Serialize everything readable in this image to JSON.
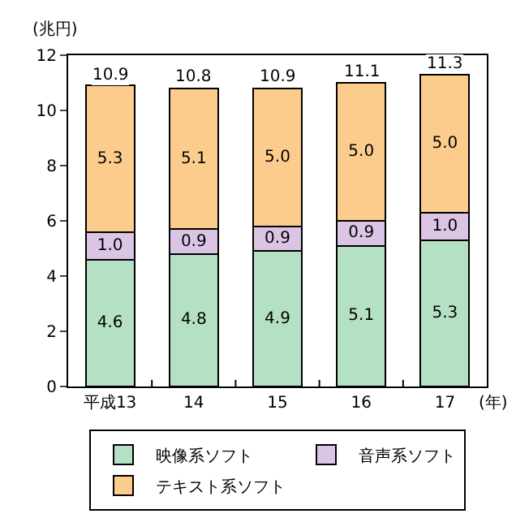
{
  "chart_data": {
    "type": "bar",
    "stacked": true,
    "xlabel": "(年)",
    "ylabel": "(兆円)",
    "categories": [
      "平成13",
      "14",
      "15",
      "16",
      "17"
    ],
    "series": [
      {
        "name": "映像系ソフト",
        "color": "#b4e0c4",
        "values": [
          4.6,
          4.8,
          4.9,
          5.1,
          5.3
        ],
        "value_labels": [
          "4.6",
          "4.8",
          "4.9",
          "5.1",
          "5.3"
        ]
      },
      {
        "name": "音声系ソフト",
        "color": "#dcc4e4",
        "values": [
          1.0,
          0.9,
          0.9,
          0.9,
          1.0
        ],
        "value_labels": [
          "1.0",
          "0.9",
          "0.9",
          "0.9",
          "1.0"
        ]
      },
      {
        "name": "テキスト系ソフト",
        "color": "#fccc8c",
        "values": [
          5.3,
          5.1,
          5.0,
          5.0,
          5.0
        ],
        "value_labels": [
          "5.3",
          "5.1",
          "5.0",
          "5.0",
          "5.0"
        ]
      }
    ],
    "totals": [
      "10.9",
      "10.8",
      "10.9",
      "11.1",
      "11.3"
    ],
    "ylim": [
      0,
      12
    ],
    "yticks": [
      0,
      2,
      4,
      6,
      8,
      10,
      12
    ],
    "grid": false,
    "legend": "bottom"
  }
}
